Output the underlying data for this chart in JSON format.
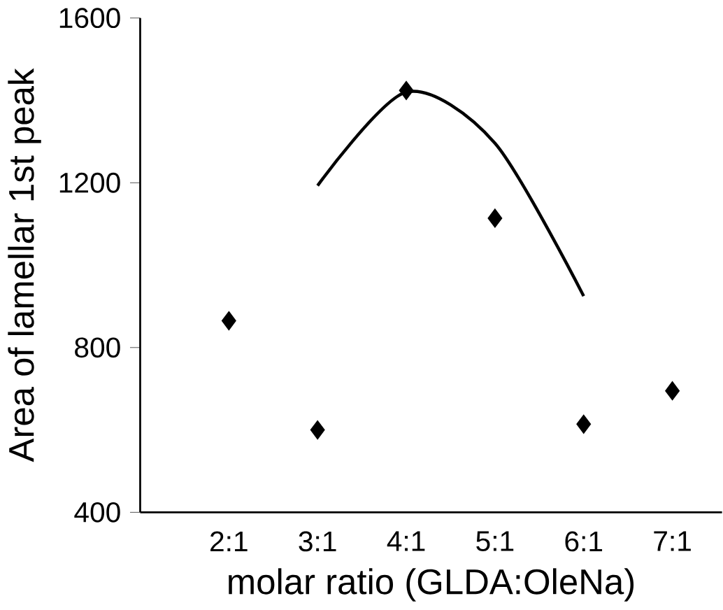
{
  "chart_data": {
    "type": "scatter",
    "xlabel": "molar ratio (GLDA:OleNa)",
    "ylabel": "Area of lamellar 1st peak",
    "categories": [
      "2:1",
      "3:1",
      "4:1",
      "5:1",
      "6:1",
      "7:1"
    ],
    "ylim": [
      400,
      1600
    ],
    "yticks": [
      400,
      800,
      1200,
      1600
    ],
    "series": [
      {
        "color": "#000000",
        "marker": "diamond",
        "values": [
          865,
          600,
          1424,
          1114,
          614,
          695
        ]
      },
      {
        "type": "line",
        "color": "#000000",
        "line_style": "solid",
        "values": [
          null,
          1193,
          1420,
          1296,
          925,
          null
        ]
      }
    ]
  }
}
